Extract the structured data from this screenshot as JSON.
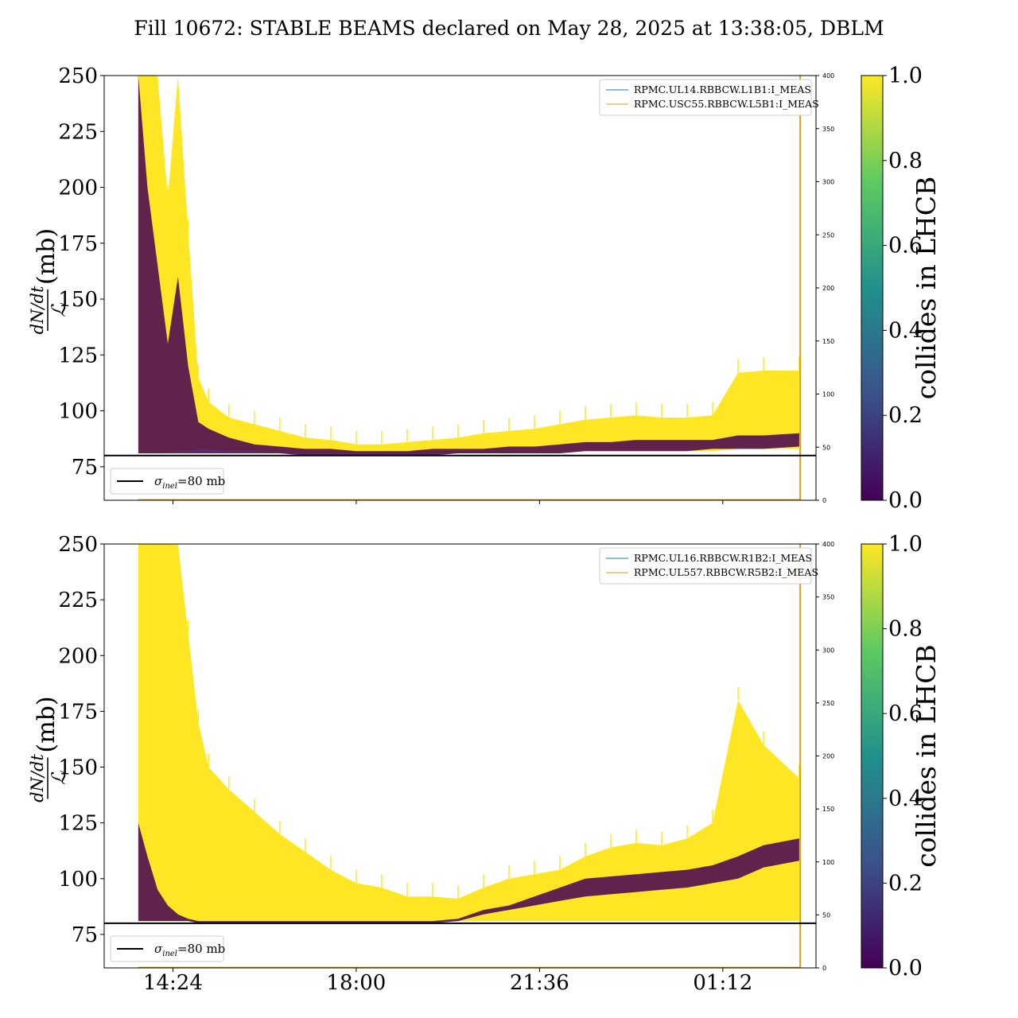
{
  "title": "Fill 10672: STABLE BEAMS declared on May 28, 2025 at 13:38:05, DBLM",
  "colors": {
    "high": "#fde725",
    "low": "#440154",
    "line_blue": "#1f77b4",
    "line_orange": "#d4a017",
    "ref_line": "#000000"
  },
  "ylabel": {
    "numerator": "dN/dt",
    "denominator": "ℒ",
    "unit": "(mb)"
  },
  "colorbar": {
    "label": "collides in LHCB",
    "ticks": [
      "0.0",
      "0.2",
      "0.4",
      "0.6",
      "0.8",
      "1.0"
    ],
    "colormap": [
      "#440154",
      "#3b528b",
      "#21918c",
      "#5ec962",
      "#fde725"
    ]
  },
  "chart_data": [
    {
      "type": "area",
      "panel": "top",
      "ylim": [
        60,
        250
      ],
      "yticks": [
        "75",
        "100",
        "125",
        "150",
        "175",
        "200",
        "225",
        "250"
      ],
      "right_ylim": [
        0,
        400
      ],
      "right_ticks": [
        "0",
        "50",
        "100",
        "150",
        "200",
        "250",
        "300",
        "350",
        "400"
      ],
      "x_tick_labels": [],
      "reference_line": {
        "value": 80,
        "label": "σ_inel=80 mb",
        "sym": "σ",
        "sub": "inel",
        "rest": "=80 mb"
      },
      "legend": [
        "RPMC.UL14.RBBCW.L1B1:I_MEAS",
        "RPMC.USC55.RBBCW.L5B1:I_MEAS"
      ],
      "x_hours": [
        13.72,
        13.9,
        14.1,
        14.3,
        14.5,
        14.7,
        14.9,
        15.1,
        15.5,
        16.0,
        16.5,
        17.0,
        17.5,
        18.0,
        18.5,
        19.0,
        19.5,
        20.0,
        20.5,
        21.0,
        21.5,
        22.0,
        22.5,
        23.0,
        23.5,
        24.0,
        24.5,
        25.0,
        25.5,
        26.0,
        26.7
      ],
      "yellow_upper": [
        250,
        250,
        250,
        195,
        250,
        180,
        115,
        104,
        97,
        94,
        91,
        88,
        87,
        85,
        85,
        86,
        87,
        88,
        90,
        91,
        92,
        94,
        96,
        97,
        98,
        97,
        97,
        98,
        117,
        118,
        118
      ],
      "yellow_lower": [
        81,
        81,
        81,
        81,
        82,
        82,
        83,
        83,
        82,
        82,
        81,
        81,
        81,
        81,
        81,
        81,
        81,
        81,
        81,
        81,
        81,
        81,
        82,
        82,
        82,
        82,
        82,
        82,
        83,
        83,
        83
      ],
      "purple_upper": [
        250,
        200,
        165,
        130,
        160,
        120,
        95,
        92,
        88,
        85,
        84,
        83,
        83,
        82,
        82,
        82,
        83,
        83,
        83,
        84,
        84,
        85,
        86,
        86,
        87,
        87,
        87,
        87,
        89,
        89,
        90
      ],
      "purple_lower": [
        81,
        81,
        81,
        81,
        81,
        81,
        81,
        81,
        81,
        81,
        81,
        80,
        80,
        80,
        80,
        80,
        80,
        81,
        81,
        81,
        81,
        81,
        82,
        82,
        82,
        82,
        82,
        83,
        83,
        83,
        84
      ]
    },
    {
      "type": "area",
      "panel": "bottom",
      "ylim": [
        60,
        250
      ],
      "yticks": [
        "75",
        "100",
        "125",
        "150",
        "175",
        "200",
        "225",
        "250"
      ],
      "right_ylim": [
        0,
        400
      ],
      "right_ticks": [
        "0",
        "50",
        "100",
        "150",
        "200",
        "250",
        "300",
        "350",
        "400"
      ],
      "x_tick_labels": [
        {
          "label": "14:24",
          "hour": 14.4
        },
        {
          "label": "18:00",
          "hour": 18.0
        },
        {
          "label": "21:36",
          "hour": 21.6
        },
        {
          "label": "01:12",
          "hour": 25.2
        }
      ],
      "reference_line": {
        "value": 80,
        "label": "σ_inel=80 mb",
        "sym": "σ",
        "sub": "inel",
        "rest": "=80 mb"
      },
      "legend": [
        "RPMC.UL16.RBBCW.R1B2:I_MEAS",
        "RPMC.UL557.RBBCW.R5B2:I_MEAS"
      ],
      "x_hours": [
        13.72,
        13.9,
        14.1,
        14.3,
        14.5,
        14.7,
        14.9,
        15.1,
        15.5,
        16.0,
        16.5,
        17.0,
        17.5,
        18.0,
        18.5,
        19.0,
        19.5,
        20.0,
        20.5,
        21.0,
        21.5,
        22.0,
        22.5,
        23.0,
        23.5,
        24.0,
        24.5,
        25.0,
        25.5,
        26.0,
        26.7
      ],
      "yellow_upper": [
        250,
        250,
        250,
        250,
        250,
        210,
        170,
        150,
        140,
        130,
        120,
        112,
        104,
        98,
        96,
        92,
        92,
        91,
        96,
        100,
        102,
        104,
        110,
        114,
        116,
        115,
        118,
        125,
        180,
        160,
        145
      ],
      "yellow_lower": [
        81,
        81,
        81,
        81,
        81,
        81,
        81,
        81,
        81,
        81,
        81,
        81,
        81,
        81,
        81,
        81,
        81,
        81,
        81,
        81,
        81,
        81,
        81,
        81,
        81,
        81,
        81,
        81,
        81,
        81,
        81
      ],
      "purple_upper": [
        125,
        110,
        95,
        88,
        84,
        82,
        81,
        81,
        81,
        81,
        81,
        81,
        81,
        81,
        81,
        81,
        81,
        82,
        86,
        88,
        92,
        96,
        100,
        101,
        102,
        103,
        104,
        106,
        110,
        115,
        118
      ],
      "purple_lower": [
        81,
        81,
        81,
        81,
        81,
        81,
        80,
        80,
        80,
        80,
        80,
        80,
        80,
        80,
        80,
        80,
        80,
        81,
        84,
        86,
        88,
        90,
        92,
        93,
        94,
        95,
        96,
        98,
        100,
        105,
        108
      ]
    }
  ]
}
